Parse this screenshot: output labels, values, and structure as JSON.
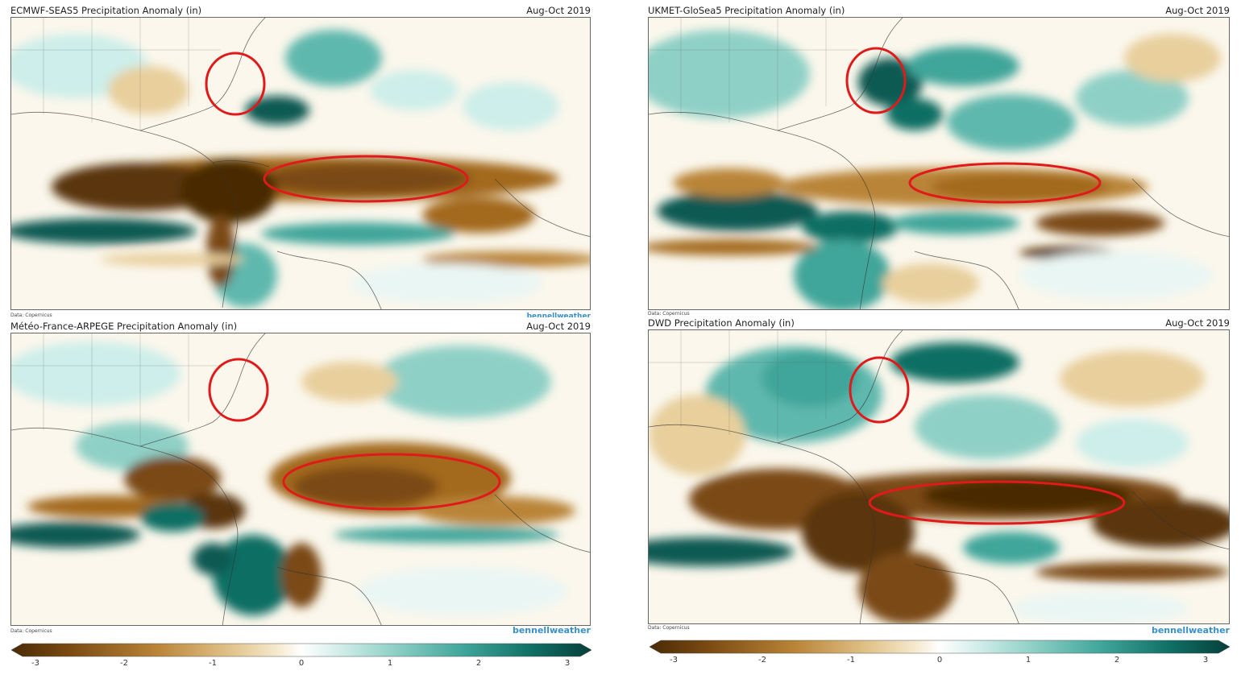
{
  "panels": [
    {
      "title": "ECMWF-SEAS5 Precipitation Anomaly (in)",
      "period": "Aug-Oct 2019",
      "credit": "Data: Copernicus",
      "brand": "bennellweather"
    },
    {
      "title": "UKMET-GloSea5 Precipitation Anomaly (in)",
      "period": "Aug-Oct 2019",
      "credit": "Data: Copernicus",
      "brand": ""
    },
    {
      "title": "Météo-France-ARPEGE Precipitation Anomaly (in)",
      "period": "Aug-Oct 2019",
      "credit": "Data: Copernicus",
      "brand": "bennellweather"
    },
    {
      "title": "DWD Precipitation Anomaly (in)",
      "period": "Aug-Oct 2019",
      "credit": "Data: Copernicus",
      "brand": "bennellweather"
    }
  ],
  "colorbar": {
    "ticks": [
      "-3",
      "-2",
      "-1",
      "0",
      "1",
      "2",
      "3"
    ],
    "colors": [
      "#4a2a06",
      "#7a4a12",
      "#b98437",
      "#e2c48c",
      "#f6ead0",
      "#ffffff",
      "#d6efec",
      "#8fd0c6",
      "#3fa59a",
      "#0f6e64",
      "#063f3a"
    ]
  },
  "palette": {
    "dry_dark": "#5a3408",
    "dry_mid": "#a3691f",
    "dry_light": "#e8cf9c",
    "wet_light": "#cdeeea",
    "wet_mid": "#5fb8ad",
    "wet_dark": "#0a5a52",
    "highlight": "#e01a1a"
  }
}
